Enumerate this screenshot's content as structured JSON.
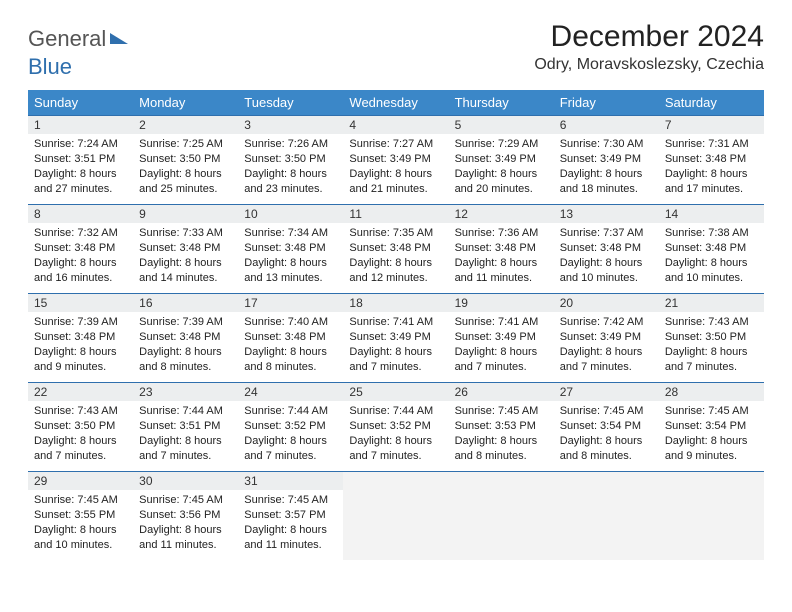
{
  "logo": {
    "part1": "General",
    "part2": "Blue"
  },
  "title": "December 2024",
  "location": "Odry, Moravskoslezsky, Czechia",
  "colors": {
    "header_bg": "#3b87c8",
    "header_text": "#ffffff",
    "rule": "#2f6fad",
    "daynum_bg": "#eceeef",
    "empty_bg": "#f3f3f3",
    "logo_blue": "#2f6fad",
    "logo_gray": "#555555",
    "body_text": "#222222"
  },
  "typography": {
    "title_fontsize": 30,
    "location_fontsize": 16,
    "dayheader_fontsize": 13,
    "daynum_fontsize": 12,
    "body_fontsize": 11
  },
  "weekdays": [
    "Sunday",
    "Monday",
    "Tuesday",
    "Wednesday",
    "Thursday",
    "Friday",
    "Saturday"
  ],
  "weeks": [
    [
      {
        "n": "1",
        "sr": "7:24 AM",
        "ss": "3:51 PM",
        "dl": "8 hours and 27 minutes."
      },
      {
        "n": "2",
        "sr": "7:25 AM",
        "ss": "3:50 PM",
        "dl": "8 hours and 25 minutes."
      },
      {
        "n": "3",
        "sr": "7:26 AM",
        "ss": "3:50 PM",
        "dl": "8 hours and 23 minutes."
      },
      {
        "n": "4",
        "sr": "7:27 AM",
        "ss": "3:49 PM",
        "dl": "8 hours and 21 minutes."
      },
      {
        "n": "5",
        "sr": "7:29 AM",
        "ss": "3:49 PM",
        "dl": "8 hours and 20 minutes."
      },
      {
        "n": "6",
        "sr": "7:30 AM",
        "ss": "3:49 PM",
        "dl": "8 hours and 18 minutes."
      },
      {
        "n": "7",
        "sr": "7:31 AM",
        "ss": "3:48 PM",
        "dl": "8 hours and 17 minutes."
      }
    ],
    [
      {
        "n": "8",
        "sr": "7:32 AM",
        "ss": "3:48 PM",
        "dl": "8 hours and 16 minutes."
      },
      {
        "n": "9",
        "sr": "7:33 AM",
        "ss": "3:48 PM",
        "dl": "8 hours and 14 minutes."
      },
      {
        "n": "10",
        "sr": "7:34 AM",
        "ss": "3:48 PM",
        "dl": "8 hours and 13 minutes."
      },
      {
        "n": "11",
        "sr": "7:35 AM",
        "ss": "3:48 PM",
        "dl": "8 hours and 12 minutes."
      },
      {
        "n": "12",
        "sr": "7:36 AM",
        "ss": "3:48 PM",
        "dl": "8 hours and 11 minutes."
      },
      {
        "n": "13",
        "sr": "7:37 AM",
        "ss": "3:48 PM",
        "dl": "8 hours and 10 minutes."
      },
      {
        "n": "14",
        "sr": "7:38 AM",
        "ss": "3:48 PM",
        "dl": "8 hours and 10 minutes."
      }
    ],
    [
      {
        "n": "15",
        "sr": "7:39 AM",
        "ss": "3:48 PM",
        "dl": "8 hours and 9 minutes."
      },
      {
        "n": "16",
        "sr": "7:39 AM",
        "ss": "3:48 PM",
        "dl": "8 hours and 8 minutes."
      },
      {
        "n": "17",
        "sr": "7:40 AM",
        "ss": "3:48 PM",
        "dl": "8 hours and 8 minutes."
      },
      {
        "n": "18",
        "sr": "7:41 AM",
        "ss": "3:49 PM",
        "dl": "8 hours and 7 minutes."
      },
      {
        "n": "19",
        "sr": "7:41 AM",
        "ss": "3:49 PM",
        "dl": "8 hours and 7 minutes."
      },
      {
        "n": "20",
        "sr": "7:42 AM",
        "ss": "3:49 PM",
        "dl": "8 hours and 7 minutes."
      },
      {
        "n": "21",
        "sr": "7:43 AM",
        "ss": "3:50 PM",
        "dl": "8 hours and 7 minutes."
      }
    ],
    [
      {
        "n": "22",
        "sr": "7:43 AM",
        "ss": "3:50 PM",
        "dl": "8 hours and 7 minutes."
      },
      {
        "n": "23",
        "sr": "7:44 AM",
        "ss": "3:51 PM",
        "dl": "8 hours and 7 minutes."
      },
      {
        "n": "24",
        "sr": "7:44 AM",
        "ss": "3:52 PM",
        "dl": "8 hours and 7 minutes."
      },
      {
        "n": "25",
        "sr": "7:44 AM",
        "ss": "3:52 PM",
        "dl": "8 hours and 7 minutes."
      },
      {
        "n": "26",
        "sr": "7:45 AM",
        "ss": "3:53 PM",
        "dl": "8 hours and 8 minutes."
      },
      {
        "n": "27",
        "sr": "7:45 AM",
        "ss": "3:54 PM",
        "dl": "8 hours and 8 minutes."
      },
      {
        "n": "28",
        "sr": "7:45 AM",
        "ss": "3:54 PM",
        "dl": "8 hours and 9 minutes."
      }
    ],
    [
      {
        "n": "29",
        "sr": "7:45 AM",
        "ss": "3:55 PM",
        "dl": "8 hours and 10 minutes."
      },
      {
        "n": "30",
        "sr": "7:45 AM",
        "ss": "3:56 PM",
        "dl": "8 hours and 11 minutes."
      },
      {
        "n": "31",
        "sr": "7:45 AM",
        "ss": "3:57 PM",
        "dl": "8 hours and 11 minutes."
      },
      null,
      null,
      null,
      null
    ]
  ],
  "labels": {
    "sunrise": "Sunrise:",
    "sunset": "Sunset:",
    "daylight": "Daylight:"
  }
}
